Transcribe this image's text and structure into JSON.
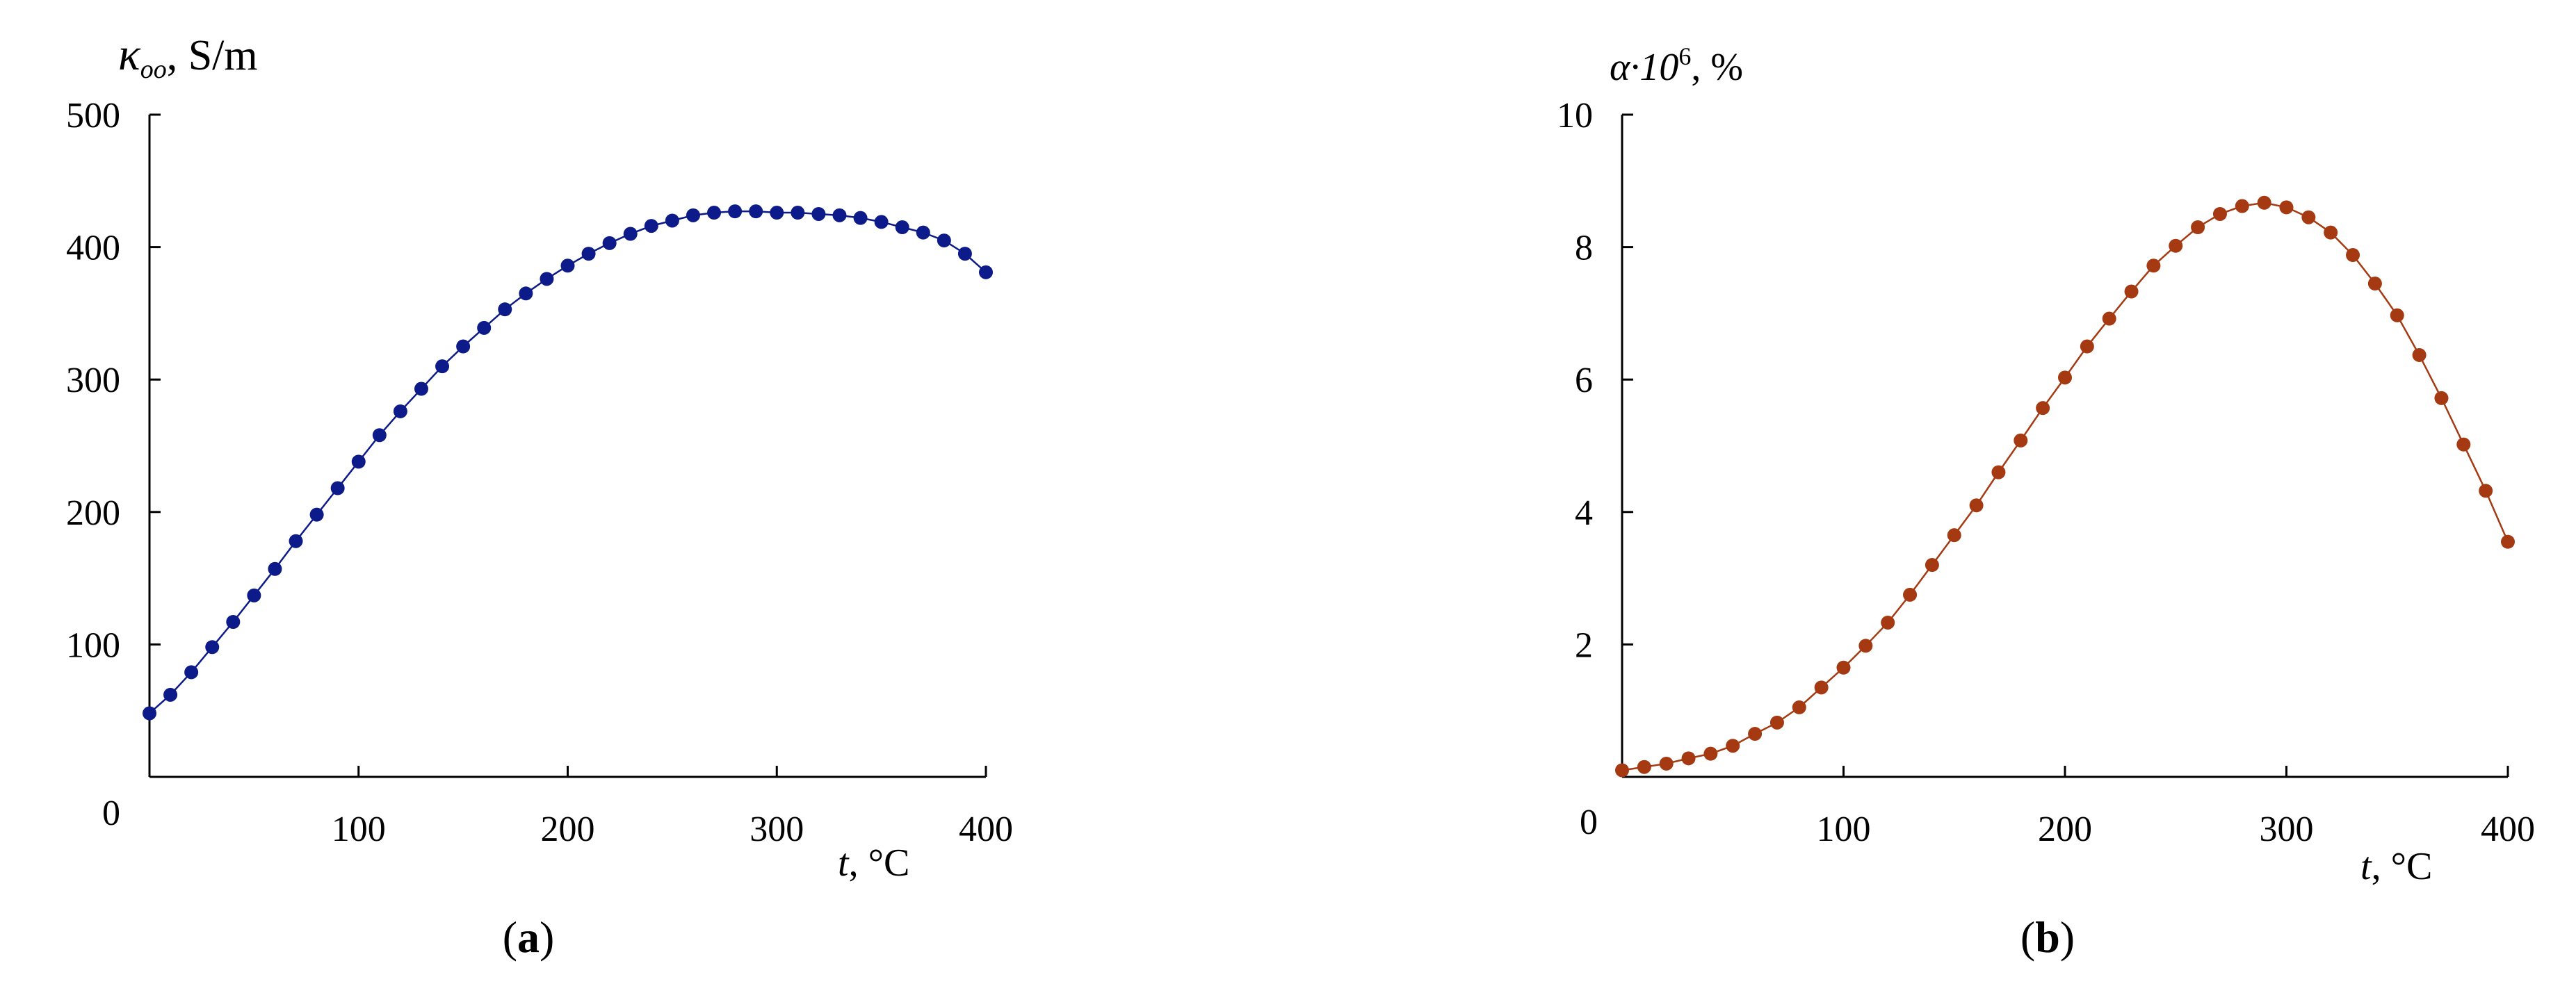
{
  "chart_data": [
    {
      "type": "line",
      "panel_label": "a",
      "ylabel_symbol": "κ",
      "ylabel_subscript": "oo",
      "ylabel_unit": ", S/m",
      "xlabel_symbol": "t",
      "xlabel_unit": ", °C",
      "origin_label": "0",
      "xlim": [
        0,
        400
      ],
      "ylim": [
        0,
        500
      ],
      "xticks": [
        100,
        200,
        300,
        400
      ],
      "yticks": [
        100,
        200,
        300,
        400,
        500
      ],
      "color": "#0d1b8a",
      "series": [
        {
          "name": "kappa_oo",
          "x": [
            0,
            10,
            20,
            30,
            40,
            50,
            60,
            70,
            80,
            90,
            100,
            110,
            120,
            130,
            140,
            150,
            160,
            170,
            180,
            190,
            200,
            210,
            220,
            230,
            240,
            250,
            260,
            270,
            280,
            290,
            300,
            310,
            320,
            330,
            340,
            350,
            360,
            370,
            380,
            390,
            400
          ],
          "y": [
            48,
            62,
            79,
            98,
            117,
            137,
            157,
            178,
            198,
            218,
            238,
            258,
            276,
            293,
            310,
            325,
            339,
            353,
            365,
            376,
            386,
            395,
            403,
            410,
            416,
            420,
            424,
            426,
            427,
            427,
            426,
            426,
            425,
            424,
            422,
            419,
            415,
            411,
            405,
            395,
            381
          ]
        }
      ]
    },
    {
      "type": "line",
      "panel_label": "b",
      "ylabel_symbol": "α·10",
      "ylabel_superscript": "6",
      "ylabel_unit": ", %",
      "xlabel_symbol": "t",
      "xlabel_unit": ", °C",
      "origin_label": "0",
      "xlim": [
        0,
        400
      ],
      "ylim": [
        0,
        10
      ],
      "xticks": [
        100,
        200,
        300,
        400
      ],
      "yticks": [
        2,
        4,
        6,
        8,
        10
      ],
      "color": "#a53a12",
      "series": [
        {
          "name": "alpha",
          "x": [
            0,
            10,
            20,
            30,
            40,
            50,
            60,
            70,
            80,
            90,
            100,
            110,
            120,
            130,
            140,
            150,
            160,
            170,
            180,
            190,
            200,
            210,
            220,
            230,
            240,
            250,
            260,
            270,
            280,
            290,
            300,
            310,
            320,
            330,
            340,
            350,
            360,
            370,
            380,
            390,
            400
          ],
          "y": [
            0.1,
            0.15,
            0.2,
            0.28,
            0.35,
            0.47,
            0.65,
            0.82,
            1.05,
            1.35,
            1.65,
            1.98,
            2.33,
            2.75,
            3.2,
            3.65,
            4.1,
            4.6,
            5.08,
            5.57,
            6.03,
            6.5,
            6.92,
            7.33,
            7.72,
            8.02,
            8.3,
            8.5,
            8.62,
            8.67,
            8.6,
            8.45,
            8.22,
            7.88,
            7.45,
            6.97,
            6.37,
            5.72,
            5.02,
            4.32,
            3.55
          ]
        }
      ]
    }
  ]
}
